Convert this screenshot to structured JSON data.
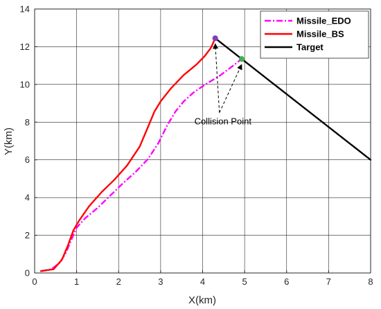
{
  "chart_data": {
    "type": "line",
    "title": "",
    "xlabel": "X(km)",
    "ylabel": "Y(km)",
    "xlim": [
      0,
      8
    ],
    "ylim": [
      0,
      14
    ],
    "xticks": [
      "0",
      "1",
      "2",
      "3",
      "4",
      "5",
      "6",
      "7",
      "8"
    ],
    "yticks": [
      "0",
      "2",
      "4",
      "6",
      "8",
      "10",
      "12",
      "14"
    ],
    "grid": true,
    "legend_position": "top-right",
    "series": [
      {
        "name": "Missile_EDO",
        "color": "#ff00ff",
        "style": "dash-dot",
        "x": [
          0.15,
          0.4,
          0.6,
          0.75,
          0.9,
          1.0,
          1.2,
          1.5,
          1.8,
          2.1,
          2.4,
          2.7,
          2.95,
          3.15,
          3.35,
          3.55,
          3.8,
          4.1,
          4.4,
          4.7,
          4.93
        ],
        "y": [
          0.1,
          0.2,
          0.55,
          1.1,
          1.9,
          2.4,
          2.9,
          3.45,
          4.1,
          4.75,
          5.35,
          6.05,
          6.9,
          7.8,
          8.55,
          9.1,
          9.6,
          10.05,
          10.45,
          10.95,
          11.35
        ]
      },
      {
        "name": "Missile_BS",
        "color": "#ff0000",
        "style": "solid",
        "x": [
          0.15,
          0.45,
          0.65,
          0.8,
          0.92,
          1.05,
          1.3,
          1.6,
          1.9,
          2.2,
          2.5,
          2.7,
          2.85,
          3.0,
          3.25,
          3.55,
          3.85,
          4.05,
          4.2,
          4.3
        ],
        "y": [
          0.1,
          0.2,
          0.7,
          1.5,
          2.25,
          2.75,
          3.55,
          4.3,
          4.95,
          5.7,
          6.7,
          7.75,
          8.55,
          9.1,
          9.8,
          10.5,
          11.05,
          11.5,
          11.95,
          12.45
        ]
      },
      {
        "name": "Target",
        "color": "#000000",
        "style": "solid",
        "x": [
          4.3,
          4.93,
          8.0
        ],
        "y": [
          12.45,
          11.35,
          6.0
        ]
      }
    ],
    "collision_points": [
      {
        "series": "Missile_BS",
        "x": 4.3,
        "y": 12.45,
        "color": "#7f3fbf"
      },
      {
        "series": "Missile_EDO",
        "x": 4.93,
        "y": 11.35,
        "color": "#3fb04f"
      }
    ],
    "annotation": {
      "text": "Collision Point",
      "anchor_x": 4.4,
      "anchor_y": 8.5
    }
  }
}
